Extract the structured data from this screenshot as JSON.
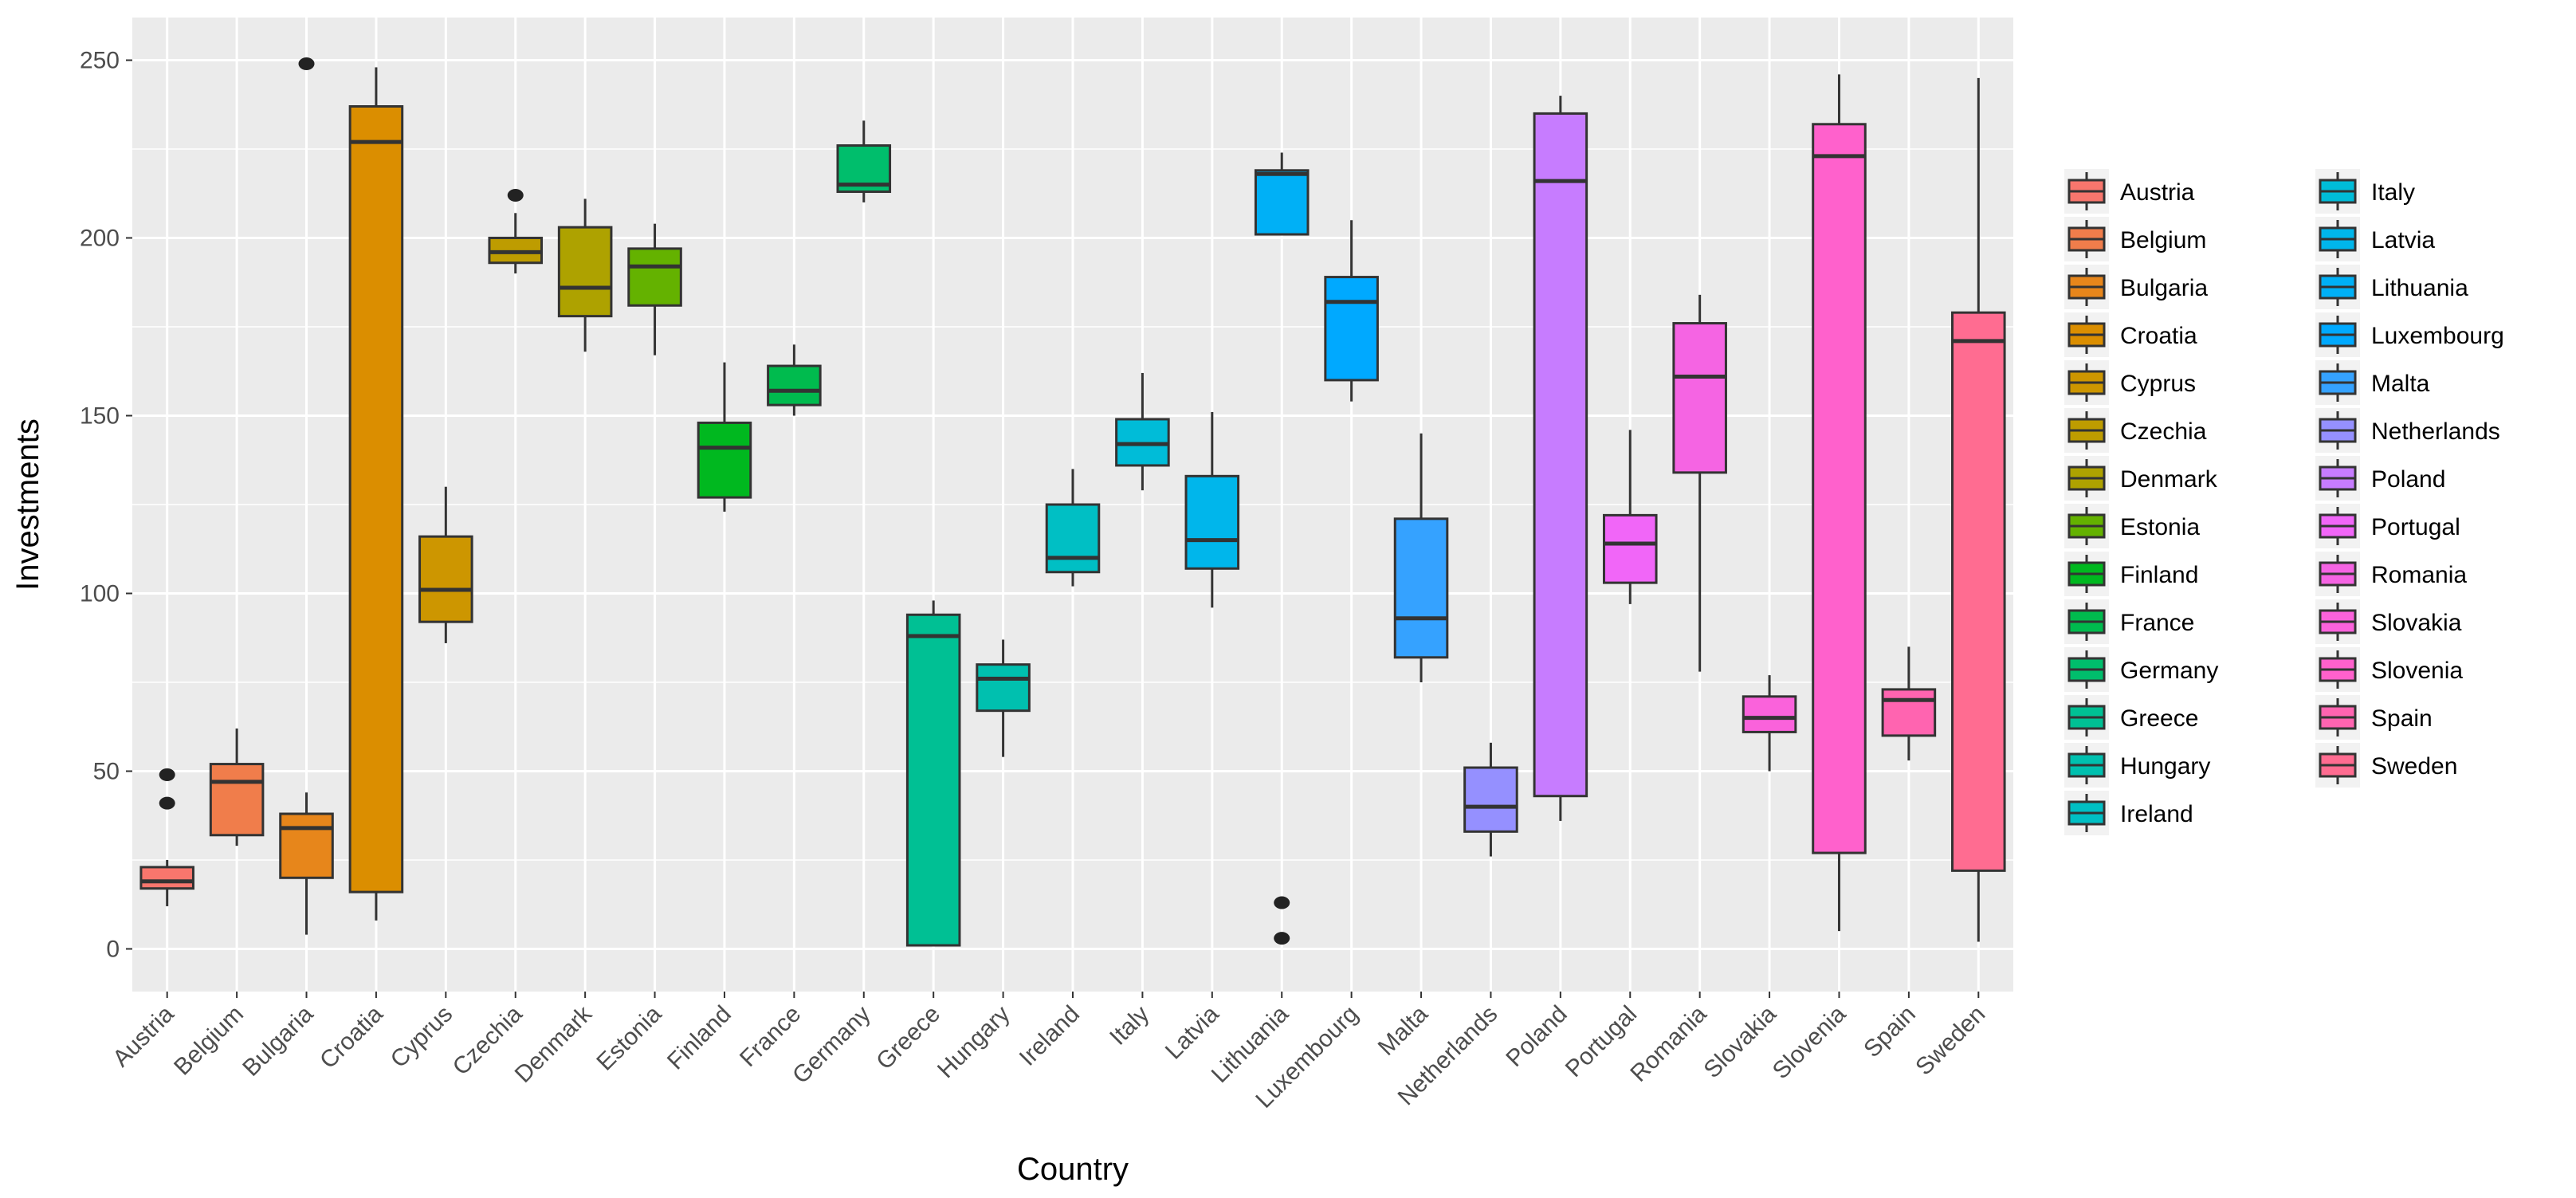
{
  "chart_data": {
    "type": "boxplot",
    "xlabel": "Country",
    "ylabel": "Investments",
    "ylim": [
      -12,
      262
    ],
    "yticks": [
      0,
      50,
      100,
      150,
      200,
      250
    ],
    "grid": true,
    "legend_position": "right",
    "categories": [
      "Austria",
      "Belgium",
      "Bulgaria",
      "Croatia",
      "Cyprus",
      "Czechia",
      "Denmark",
      "Estonia",
      "Finland",
      "France",
      "Germany",
      "Greece",
      "Hungary",
      "Ireland",
      "Italy",
      "Latvia",
      "Lithuania",
      "Luxembourg",
      "Malta",
      "Netherlands",
      "Poland",
      "Portugal",
      "Romania",
      "Slovakia",
      "Slovenia",
      "Spain",
      "Sweden"
    ],
    "series": [
      {
        "name": "Austria",
        "color": "#F8766D",
        "stats": {
          "lower": 12,
          "q1": 17,
          "median": 19,
          "q3": 23,
          "upper": 25
        },
        "outliers": [
          41,
          49
        ]
      },
      {
        "name": "Belgium",
        "color": "#F07D4B",
        "stats": {
          "lower": 29,
          "q1": 32,
          "median": 47,
          "q3": 52,
          "upper": 62
        },
        "outliers": []
      },
      {
        "name": "Bulgaria",
        "color": "#E7861B",
        "stats": {
          "lower": 4,
          "q1": 20,
          "median": 34,
          "q3": 38,
          "upper": 44
        },
        "outliers": [
          249
        ]
      },
      {
        "name": "Croatia",
        "color": "#DB8E00",
        "stats": {
          "lower": 8,
          "q1": 16,
          "median": 227,
          "q3": 237,
          "upper": 248
        },
        "outliers": []
      },
      {
        "name": "Cyprus",
        "color": "#CD9600",
        "stats": {
          "lower": 86,
          "q1": 92,
          "median": 101,
          "q3": 116,
          "upper": 130
        },
        "outliers": []
      },
      {
        "name": "Czechia",
        "color": "#BE9C00",
        "stats": {
          "lower": 190,
          "q1": 193,
          "median": 196,
          "q3": 200,
          "upper": 207
        },
        "outliers": [
          212
        ]
      },
      {
        "name": "Denmark",
        "color": "#AEA200",
        "stats": {
          "lower": 168,
          "q1": 178,
          "median": 186,
          "q3": 203,
          "upper": 211
        },
        "outliers": []
      },
      {
        "name": "Estonia",
        "color": "#64B200",
        "stats": {
          "lower": 167,
          "q1": 181,
          "median": 192,
          "q3": 197,
          "upper": 204
        },
        "outliers": []
      },
      {
        "name": "Finland",
        "color": "#00B81F",
        "stats": {
          "lower": 123,
          "q1": 127,
          "median": 141,
          "q3": 148,
          "upper": 165
        },
        "outliers": []
      },
      {
        "name": "France",
        "color": "#00BB4E",
        "stats": {
          "lower": 150,
          "q1": 153,
          "median": 157,
          "q3": 164,
          "upper": 170
        },
        "outliers": []
      },
      {
        "name": "Germany",
        "color": "#00BE6C",
        "stats": {
          "lower": 210,
          "q1": 213,
          "median": 215,
          "q3": 226,
          "upper": 233
        },
        "outliers": []
      },
      {
        "name": "Greece",
        "color": "#00C094",
        "stats": {
          "lower": 1,
          "q1": 1,
          "median": 88,
          "q3": 94,
          "upper": 98
        },
        "outliers": []
      },
      {
        "name": "Hungary",
        "color": "#00C0AF",
        "stats": {
          "lower": 54,
          "q1": 67,
          "median": 76,
          "q3": 80,
          "upper": 87
        },
        "outliers": []
      },
      {
        "name": "Ireland",
        "color": "#00BFC4",
        "stats": {
          "lower": 102,
          "q1": 106,
          "median": 110,
          "q3": 125,
          "upper": 135
        },
        "outliers": []
      },
      {
        "name": "Italy",
        "color": "#00BCD8",
        "stats": {
          "lower": 129,
          "q1": 136,
          "median": 142,
          "q3": 149,
          "upper": 162
        },
        "outliers": []
      },
      {
        "name": "Latvia",
        "color": "#00B6EB",
        "stats": {
          "lower": 96,
          "q1": 107,
          "median": 115,
          "q3": 133,
          "upper": 151
        },
        "outliers": []
      },
      {
        "name": "Lithuania",
        "color": "#00B0F6",
        "stats": {
          "lower": 201,
          "q1": 201,
          "median": 218,
          "q3": 219,
          "upper": 224
        },
        "outliers": [
          3,
          13
        ]
      },
      {
        "name": "Luxembourg",
        "color": "#00A9FF",
        "stats": {
          "lower": 154,
          "q1": 160,
          "median": 182,
          "q3": 189,
          "upper": 205
        },
        "outliers": []
      },
      {
        "name": "Malta",
        "color": "#35A2FF",
        "stats": {
          "lower": 75,
          "q1": 82,
          "median": 93,
          "q3": 121,
          "upper": 145
        },
        "outliers": []
      },
      {
        "name": "Netherlands",
        "color": "#9590FF",
        "stats": {
          "lower": 26,
          "q1": 33,
          "median": 40,
          "q3": 51,
          "upper": 58
        },
        "outliers": []
      },
      {
        "name": "Poland",
        "color": "#C77CFF",
        "stats": {
          "lower": 36,
          "q1": 43,
          "median": 216,
          "q3": 235,
          "upper": 240
        },
        "outliers": []
      },
      {
        "name": "Portugal",
        "color": "#F166F8",
        "stats": {
          "lower": 97,
          "q1": 103,
          "median": 114,
          "q3": 122,
          "upper": 146
        },
        "outliers": []
      },
      {
        "name": "Romania",
        "color": "#F564E3",
        "stats": {
          "lower": 78,
          "q1": 134,
          "median": 161,
          "q3": 176,
          "upper": 184
        },
        "outliers": []
      },
      {
        "name": "Slovakia",
        "color": "#FA62DB",
        "stats": {
          "lower": 50,
          "q1": 61,
          "median": 65,
          "q3": 71,
          "upper": 77
        },
        "outliers": []
      },
      {
        "name": "Slovenia",
        "color": "#FF61CC",
        "stats": {
          "lower": 5,
          "q1": 27,
          "median": 223,
          "q3": 232,
          "upper": 246
        },
        "outliers": []
      },
      {
        "name": "Spain",
        "color": "#FF64B0",
        "stats": {
          "lower": 53,
          "q1": 60,
          "median": 70,
          "q3": 73,
          "upper": 85
        },
        "outliers": []
      },
      {
        "name": "Sweden",
        "color": "#FF6C91",
        "stats": {
          "lower": 2,
          "q1": 22,
          "median": 171,
          "q3": 179,
          "upper": 245
        },
        "outliers": []
      }
    ]
  }
}
